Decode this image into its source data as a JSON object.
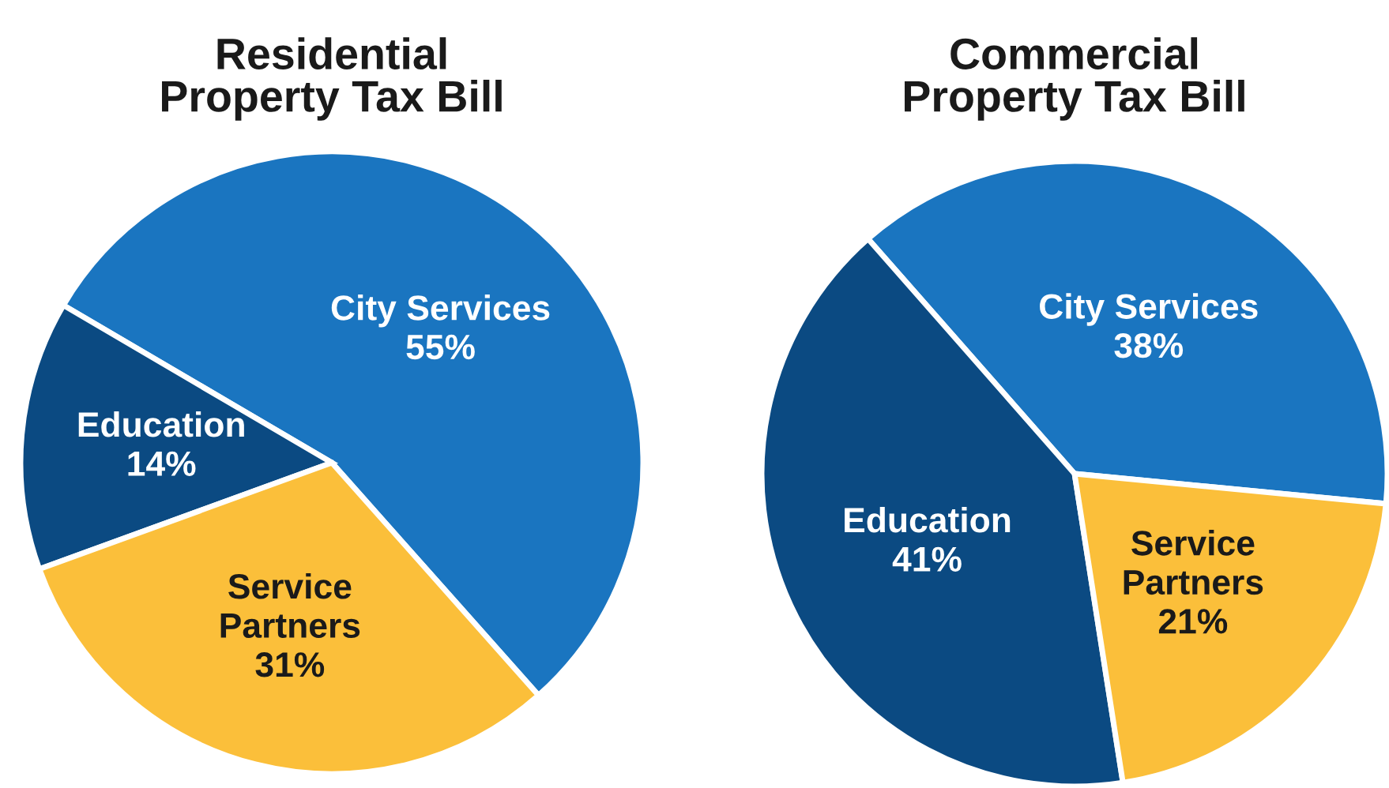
{
  "chart_data": [
    {
      "type": "pie",
      "title": "Residential Property Tax Bill",
      "categories": [
        "City Services",
        "Education",
        "Service Partners"
      ],
      "values": [
        55,
        14,
        31
      ],
      "value_labels": [
        "55%",
        "14%",
        "31%"
      ],
      "colors": [
        "#1a75c0",
        "#0b4a82",
        "#fbbf3a"
      ],
      "legend": false
    },
    {
      "type": "pie",
      "title": "Commercial Property Tax Bill",
      "categories": [
        "City Services",
        "Education",
        "Service Partners"
      ],
      "values": [
        38,
        41,
        21
      ],
      "value_labels": [
        "38%",
        "41%",
        "21%"
      ],
      "colors": [
        "#1a75c0",
        "#0b4a82",
        "#fbbf3a"
      ],
      "legend": false
    }
  ]
}
